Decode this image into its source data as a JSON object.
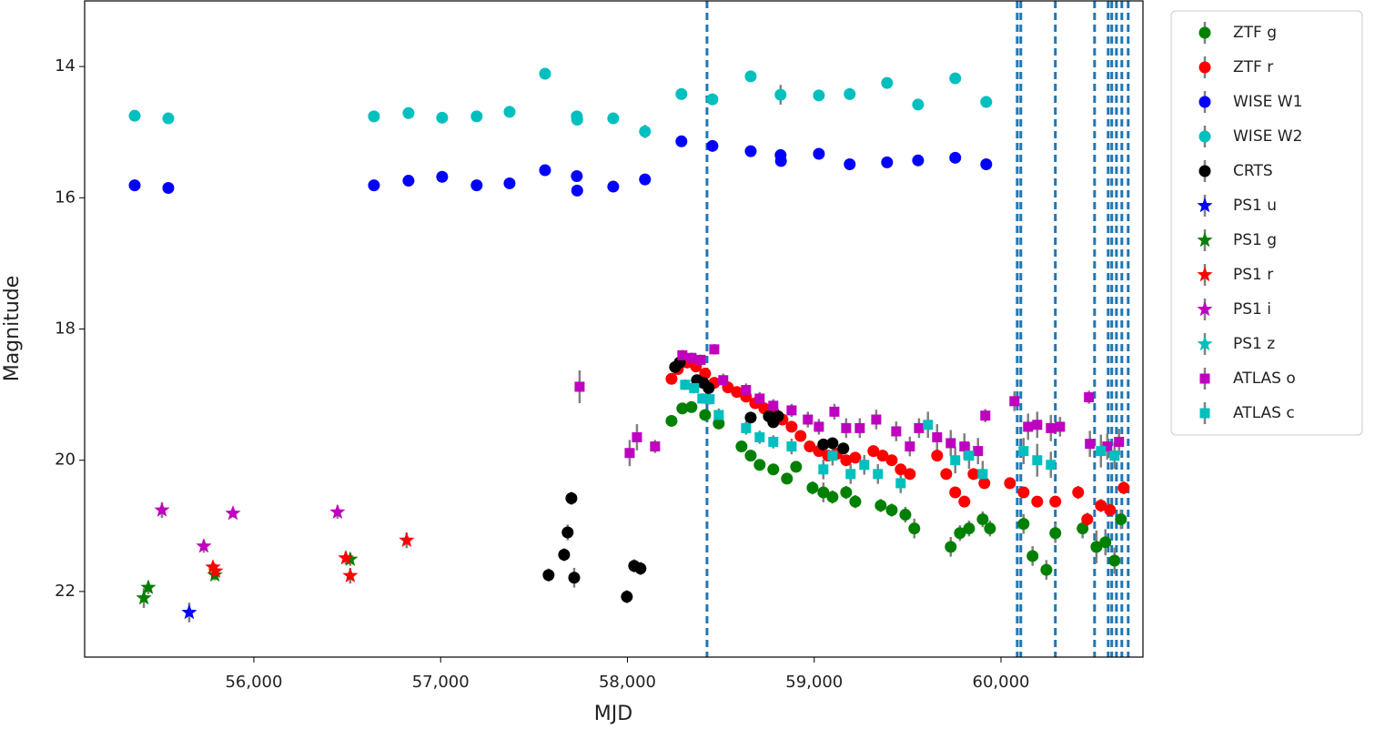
{
  "chart_data": {
    "type": "scatter",
    "xlabel": "MJD",
    "ylabel": "Magnitude",
    "xlim": [
      55094,
      60760
    ],
    "ylim": [
      13,
      23
    ],
    "y_inverted": true,
    "xticks": [
      {
        "value": 56000,
        "label": "56,000"
      },
      {
        "value": 57000,
        "label": "57,000"
      },
      {
        "value": 58000,
        "label": "58,000"
      },
      {
        "value": 59000,
        "label": "59,000"
      },
      {
        "value": 60000,
        "label": "60,000"
      }
    ],
    "yticks": [
      14,
      16,
      18,
      20,
      22
    ],
    "grid": false,
    "legend": "outside-upper-right",
    "error_color": "#808080",
    "vlines": [
      58426,
      60087,
      60106,
      60291,
      60501,
      60574,
      60593,
      60618,
      60647,
      60681
    ],
    "vline_color": "#1f77b4",
    "series": [
      {
        "name": "ZTF g",
        "color": "#008000",
        "marker": "circle",
        "x": [
          58236,
          58294,
          58343,
          58416,
          58489,
          58611,
          58660,
          58708,
          58781,
          58854,
          58903,
          58991,
          59049,
          59098,
          59171,
          59220,
          59356,
          59415,
          59488,
          59536,
          59731,
          59780,
          59829,
          59902,
          59941,
          60121,
          60169,
          60243,
          60291,
          60437,
          60511,
          60559,
          60608,
          60642
        ],
        "values": [
          19.4,
          19.21,
          19.19,
          19.31,
          19.44,
          19.79,
          19.93,
          20.07,
          20.14,
          20.28,
          20.1,
          20.42,
          20.49,
          20.56,
          20.49,
          20.63,
          20.69,
          20.76,
          20.83,
          21.04,
          21.32,
          21.11,
          21.04,
          20.9,
          21.04,
          20.97,
          21.46,
          21.67,
          21.11,
          21.04,
          21.32,
          21.25,
          21.53,
          20.9
        ],
        "errors": [
          0.05,
          0.05,
          0.05,
          0.05,
          0.06,
          0.06,
          0.06,
          0.07,
          0.07,
          0.07,
          0.07,
          0.1,
          0.15,
          0.1,
          0.1,
          0.1,
          0.1,
          0.1,
          0.12,
          0.15,
          0.15,
          0.12,
          0.12,
          0.12,
          0.12,
          0.15,
          0.15,
          0.15,
          0.15,
          0.15,
          0.25,
          0.2,
          0.2,
          0.15
        ]
      },
      {
        "name": "ZTF r",
        "color": "#ff0000",
        "marker": "circle",
        "x": [
          58236,
          58270,
          58319,
          58367,
          58416,
          58465,
          58538,
          58586,
          58635,
          58684,
          58733,
          58781,
          58830,
          58879,
          58927,
          58976,
          59025,
          59074,
          59122,
          59171,
          59220,
          59317,
          59366,
          59415,
          59463,
          59512,
          59658,
          59707,
          59755,
          59804,
          59853,
          59911,
          60048,
          60121,
          60194,
          60291,
          60413,
          60462,
          60535,
          60584,
          60657
        ],
        "values": [
          18.76,
          18.61,
          18.51,
          18.57,
          18.68,
          18.82,
          18.89,
          18.96,
          19.03,
          19.13,
          19.21,
          19.26,
          19.38,
          19.49,
          19.63,
          19.79,
          19.86,
          19.93,
          19.9,
          20.0,
          19.96,
          19.86,
          19.93,
          20.0,
          20.14,
          20.21,
          19.93,
          20.21,
          20.49,
          20.63,
          20.21,
          20.35,
          20.35,
          20.49,
          20.63,
          20.63,
          20.49,
          20.9,
          20.69,
          20.76,
          20.42
        ],
        "errors": [
          0.04,
          0.04,
          0.04,
          0.04,
          0.04,
          0.04,
          0.04,
          0.04,
          0.04,
          0.05,
          0.05,
          0.05,
          0.05,
          0.05,
          0.05,
          0.06,
          0.06,
          0.06,
          0.06,
          0.06,
          0.06,
          0.06,
          0.06,
          0.06,
          0.07,
          0.07,
          0.07,
          0.07,
          0.08,
          0.08,
          0.08,
          0.08,
          0.08,
          0.08,
          0.08,
          0.08,
          0.1,
          0.1,
          0.1,
          0.1,
          0.1
        ]
      },
      {
        "name": "WISE W1",
        "color": "#0000ff",
        "marker": "circle",
        "x": [
          55362,
          55542,
          56643,
          56828,
          57008,
          57193,
          57369,
          57559,
          57729,
          57731,
          57924,
          58094,
          58289,
          58455,
          58660,
          58820,
          58822,
          59025,
          59190,
          59390,
          59556,
          59755,
          59921
        ],
        "values": [
          15.81,
          15.85,
          15.81,
          15.74,
          15.68,
          15.81,
          15.78,
          15.58,
          15.67,
          15.89,
          15.83,
          15.72,
          15.14,
          15.21,
          15.29,
          15.35,
          15.44,
          15.33,
          15.49,
          15.46,
          15.43,
          15.39,
          15.49
        ],
        "errors": [
          0.03,
          0.03,
          0.03,
          0.03,
          0.03,
          0.03,
          0.03,
          0.03,
          0.03,
          0.04,
          0.03,
          0.05,
          0.03,
          0.03,
          0.03,
          0.03,
          0.08,
          0.03,
          0.03,
          0.03,
          0.03,
          0.03,
          0.03
        ]
      },
      {
        "name": "WISE W2",
        "color": "#00bfbf",
        "marker": "circle",
        "x": [
          55362,
          55542,
          56643,
          56828,
          57008,
          57193,
          57369,
          57559,
          57729,
          57731,
          57924,
          58094,
          58289,
          58455,
          58660,
          58820,
          59025,
          59190,
          59390,
          59556,
          59755,
          59921
        ],
        "values": [
          14.75,
          14.79,
          14.76,
          14.71,
          14.78,
          14.76,
          14.69,
          14.11,
          14.76,
          14.81,
          14.79,
          14.99,
          14.42,
          14.5,
          14.15,
          14.43,
          14.44,
          14.42,
          14.25,
          14.58,
          14.18,
          14.54
        ],
        "errors": [
          0.04,
          0.04,
          0.04,
          0.04,
          0.04,
          0.04,
          0.04,
          0.04,
          0.08,
          0.08,
          0.05,
          0.1,
          0.05,
          0.05,
          0.05,
          0.15,
          0.05,
          0.05,
          0.05,
          0.05,
          0.05,
          0.05
        ]
      },
      {
        "name": "CRTS",
        "color": "#000000",
        "marker": "circle",
        "x": [
          57578,
          57661,
          57680,
          57700,
          57715,
          57997,
          58036,
          58070,
          58255,
          58280,
          58372,
          58406,
          58435,
          58660,
          58757,
          58781,
          58806,
          59049,
          59098,
          59156
        ],
        "values": [
          21.75,
          21.44,
          21.1,
          20.58,
          21.79,
          22.08,
          21.61,
          21.65,
          18.58,
          18.51,
          18.78,
          18.82,
          18.9,
          19.35,
          19.33,
          19.42,
          19.33,
          19.76,
          19.74,
          19.82
        ],
        "errors": [
          0.1,
          0.1,
          0.12,
          0.1,
          0.15,
          0.1,
          0.1,
          0.1,
          0.05,
          0.05,
          0.05,
          0.05,
          0.05,
          0.05,
          0.05,
          0.05,
          0.05,
          0.05,
          0.05,
          0.05
        ]
      },
      {
        "name": "PS1 u",
        "color": "#0000ff",
        "marker": "star",
        "x": [
          55654
        ],
        "values": [
          22.32
        ],
        "errors": [
          0.15
        ]
      },
      {
        "name": "PS1 g",
        "color": "#008000",
        "marker": "star",
        "x": [
          55411,
          55435,
          55791,
          56516
        ],
        "values": [
          22.1,
          21.94,
          21.75,
          21.51
        ],
        "errors": [
          0.15,
          0.1,
          0.08,
          0.1
        ]
      },
      {
        "name": "PS1 r",
        "color": "#ff0000",
        "marker": "star",
        "x": [
          55781,
          55795,
          56492,
          56516,
          56818
        ],
        "values": [
          21.63,
          21.69,
          21.49,
          21.76,
          21.22
        ],
        "errors": [
          0.08,
          0.08,
          0.1,
          0.12,
          0.12
        ]
      },
      {
        "name": "PS1 i",
        "color": "#bf00bf",
        "marker": "star",
        "x": [
          55508,
          55732,
          55888,
          56448
        ],
        "values": [
          20.76,
          21.31,
          20.81,
          20.79
        ],
        "errors": [
          0.12,
          0.1,
          0.06,
          0.1
        ]
      },
      {
        "name": "PS1 z",
        "color": "#00bfbf",
        "marker": "star",
        "x": [],
        "values": [],
        "errors": []
      },
      {
        "name": "ATLAS o",
        "color": "#bf00bf",
        "marker": "square",
        "x": [
          57744,
          58012,
          58051,
          58148,
          58294,
          58343,
          58392,
          58465,
          58513,
          58635,
          58708,
          58781,
          58879,
          58966,
          59025,
          59108,
          59171,
          59244,
          59332,
          59439,
          59512,
          59561,
          59658,
          59731,
          59804,
          59877,
          59916,
          60072,
          60145,
          60194,
          60267,
          60316,
          60471,
          60476,
          60569,
          60632
        ],
        "values": [
          18.88,
          19.89,
          19.65,
          19.79,
          18.4,
          18.44,
          18.47,
          18.31,
          18.78,
          18.93,
          19.06,
          19.17,
          19.24,
          19.38,
          19.49,
          19.26,
          19.51,
          19.51,
          19.38,
          19.56,
          19.79,
          19.51,
          19.65,
          19.74,
          19.79,
          19.86,
          19.32,
          19.1,
          19.49,
          19.46,
          19.51,
          19.49,
          19.04,
          19.75,
          19.79,
          19.72
        ],
        "errors": [
          0.25,
          0.2,
          0.2,
          0.1,
          0.08,
          0.08,
          0.08,
          0.08,
          0.1,
          0.1,
          0.1,
          0.1,
          0.1,
          0.12,
          0.12,
          0.12,
          0.15,
          0.15,
          0.15,
          0.15,
          0.15,
          0.15,
          0.2,
          0.2,
          0.2,
          0.2,
          0.1,
          0.15,
          0.2,
          0.2,
          0.2,
          0.15,
          0.1,
          0.2,
          0.2,
          0.2
        ]
      },
      {
        "name": "ATLAS c",
        "color": "#00bfbf",
        "marker": "square",
        "x": [
          58309,
          58357,
          58401,
          58440,
          58489,
          58635,
          58708,
          58781,
          58879,
          59049,
          59098,
          59195,
          59268,
          59341,
          59463,
          59609,
          59755,
          59829,
          59902,
          60121,
          60194,
          60267,
          60535,
          60608
        ],
        "values": [
          18.85,
          18.9,
          19.06,
          19.07,
          19.31,
          19.51,
          19.65,
          19.72,
          19.79,
          20.14,
          19.93,
          20.21,
          20.07,
          20.21,
          20.35,
          19.46,
          20.0,
          19.93,
          20.21,
          19.86,
          20.0,
          20.07,
          19.86,
          19.93
        ],
        "errors": [
          0.08,
          0.08,
          0.08,
          0.08,
          0.1,
          0.1,
          0.1,
          0.1,
          0.12,
          0.15,
          0.15,
          0.15,
          0.15,
          0.15,
          0.15,
          0.2,
          0.2,
          0.2,
          0.2,
          0.2,
          0.25,
          0.2,
          0.25,
          0.2
        ]
      }
    ]
  }
}
